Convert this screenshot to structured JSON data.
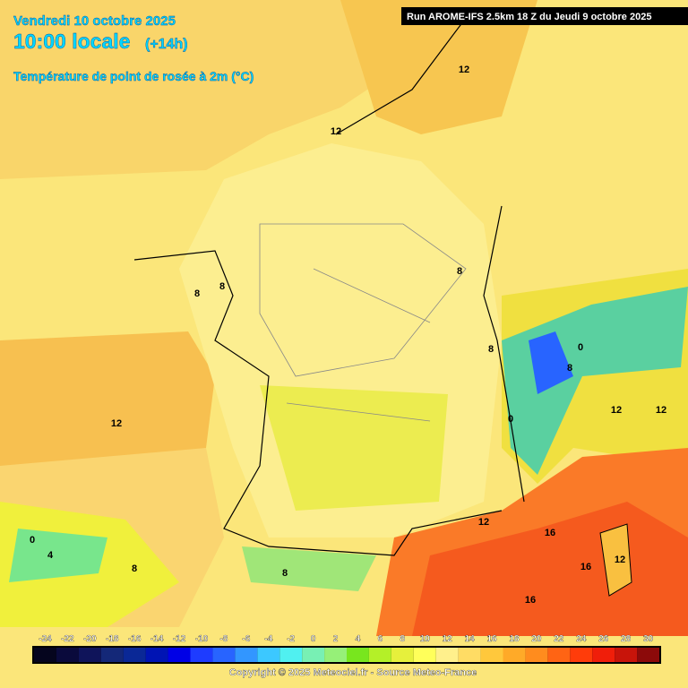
{
  "header": {
    "date": "Vendredi 10 octobre 2025",
    "time": "10:00 locale",
    "lead": "(+14h)",
    "variable": "Température de point de rosée à 2m (°C)",
    "run": "Run AROME-IFS 2.5km 18 Z du Jeudi 9 octobre 2025"
  },
  "contour_labels": [
    "12",
    "12",
    "12",
    "8",
    "8",
    "8",
    "8",
    "12",
    "16",
    "16",
    "12",
    "16",
    "12",
    "12",
    "0",
    "4",
    "8",
    "8",
    "0",
    "0",
    "8"
  ],
  "colorbar": {
    "ticks": [
      -24,
      -22,
      -20,
      -18,
      -16,
      -14,
      -12,
      -10,
      -8,
      -6,
      -4,
      -2,
      0,
      2,
      4,
      6,
      8,
      10,
      12,
      14,
      16,
      18,
      20,
      22,
      24,
      26,
      28,
      30
    ],
    "colors": [
      "#05051e",
      "#0a0a3c",
      "#0f145a",
      "#142878",
      "#0a2896",
      "#0014b4",
      "#0000e6",
      "#1e3cff",
      "#2864ff",
      "#3296ff",
      "#3cc8ff",
      "#50f0f0",
      "#78f0b4",
      "#96f078",
      "#78e61e",
      "#b4f028",
      "#e6f03c",
      "#ffff5a",
      "#fff08c",
      "#ffdc64",
      "#ffc83c",
      "#ffaa28",
      "#ff8c1e",
      "#ff6414",
      "#ff3c0a",
      "#f01e0a",
      "#c8140a",
      "#8c0a0a"
    ]
  },
  "footer": "Copyright © 2025 Meteociel.fr - Source Meteo-France"
}
